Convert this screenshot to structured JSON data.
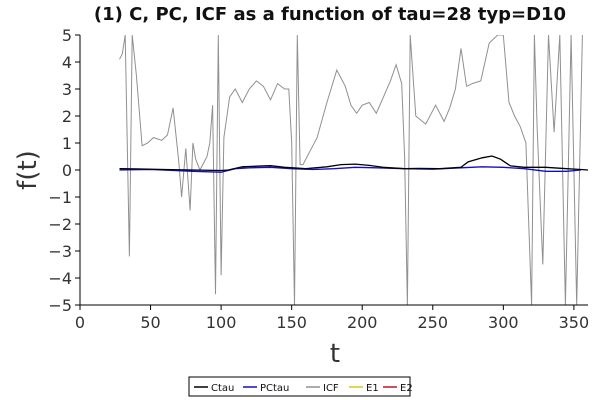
{
  "chart_data": {
    "type": "line",
    "title": "(1) C, PC, ICF as a function of tau=28 typ=D10",
    "xlabel": "t",
    "ylabel": "f(t)",
    "xlim": [
      0,
      360
    ],
    "ylim": [
      -5,
      5
    ],
    "xticks": [
      0,
      50,
      100,
      150,
      200,
      250,
      300,
      350
    ],
    "yticks": [
      5,
      4,
      3,
      2,
      1,
      0,
      -1,
      -2,
      -3,
      -4,
      -5
    ],
    "ytick_labels": [
      "5",
      "4",
      "3",
      "2",
      "1",
      "0",
      "−1",
      "−2",
      "−3",
      "−4",
      "−5"
    ],
    "grid": false,
    "legend_position": "bottom-center",
    "series": [
      {
        "name": "Ctau",
        "color": "#000000",
        "x": [
          28,
          40,
          60,
          80,
          100,
          105,
          115,
          125,
          135,
          145,
          160,
          175,
          185,
          195,
          205,
          215,
          230,
          240,
          255,
          270,
          275,
          285,
          292,
          298,
          305,
          315,
          330,
          345,
          355,
          360
        ],
        "y": [
          0.05,
          0.04,
          0.02,
          0.0,
          -0.02,
          0.0,
          0.12,
          0.14,
          0.16,
          0.1,
          0.05,
          0.12,
          0.2,
          0.22,
          0.17,
          0.1,
          0.05,
          0.06,
          0.05,
          0.1,
          0.3,
          0.45,
          0.52,
          0.4,
          0.15,
          0.1,
          0.1,
          0.05,
          0.02,
          0.0
        ]
      },
      {
        "name": "PCtau",
        "color": "#1010c0",
        "x": [
          28,
          50,
          80,
          100,
          110,
          120,
          135,
          150,
          165,
          180,
          195,
          210,
          230,
          250,
          270,
          285,
          300,
          315,
          330,
          345,
          355
        ],
        "y": [
          0.0,
          0.02,
          -0.05,
          -0.08,
          0.05,
          0.08,
          0.1,
          0.05,
          0.02,
          0.05,
          0.1,
          0.08,
          0.05,
          0.03,
          0.08,
          0.12,
          0.1,
          0.05,
          -0.05,
          -0.05,
          0.0
        ]
      },
      {
        "name": "ICF",
        "color": "#909090",
        "x": [
          28,
          30,
          32,
          35,
          37,
          40,
          44,
          48,
          52,
          58,
          62,
          66,
          70,
          72,
          75,
          78,
          80,
          82,
          85,
          88,
          90,
          92,
          94,
          96,
          98,
          100,
          102,
          106,
          110,
          115,
          120,
          125,
          130,
          135,
          140,
          145,
          148,
          150,
          152,
          154,
          156,
          158,
          162,
          168,
          175,
          182,
          188,
          192,
          196,
          200,
          205,
          210,
          215,
          220,
          224,
          228,
          230,
          232,
          234,
          238,
          245,
          252,
          258,
          262,
          266,
          270,
          274,
          278,
          284,
          290,
          296,
          300,
          304,
          308,
          312,
          316,
          320,
          322,
          324,
          328,
          332,
          336,
          340,
          344,
          348,
          352,
          356
        ],
        "y": [
          4.1,
          4.3,
          5,
          -3.2,
          5,
          3.5,
          0.9,
          1.0,
          1.2,
          1.1,
          1.3,
          2.3,
          0.3,
          -1.0,
          0.8,
          -1.5,
          1.0,
          0.4,
          0.0,
          0.3,
          0.5,
          1.0,
          2.4,
          -4.6,
          5,
          -3.9,
          1.2,
          2.7,
          3.0,
          2.5,
          3.0,
          3.3,
          3.1,
          2.6,
          3.2,
          3.0,
          3.0,
          1.0,
          -5,
          5,
          0.2,
          0.2,
          0.6,
          1.2,
          2.5,
          3.7,
          3.1,
          2.4,
          2.1,
          2.4,
          2.5,
          2.1,
          2.7,
          3.3,
          3.9,
          3.2,
          0.5,
          -5,
          5,
          2.0,
          1.7,
          2.4,
          1.8,
          2.3,
          3.0,
          4.5,
          3.1,
          3.2,
          3.3,
          4.7,
          5,
          5,
          2.5,
          2.0,
          1.6,
          1.0,
          -5,
          5,
          1.5,
          -3.5,
          5,
          1.4,
          5,
          -5,
          5,
          -5,
          5
        ]
      },
      {
        "name": "E1",
        "color": "#d8c81a",
        "x": [],
        "y": []
      },
      {
        "name": "E2",
        "color": "#c01820",
        "x": [],
        "y": []
      }
    ]
  }
}
